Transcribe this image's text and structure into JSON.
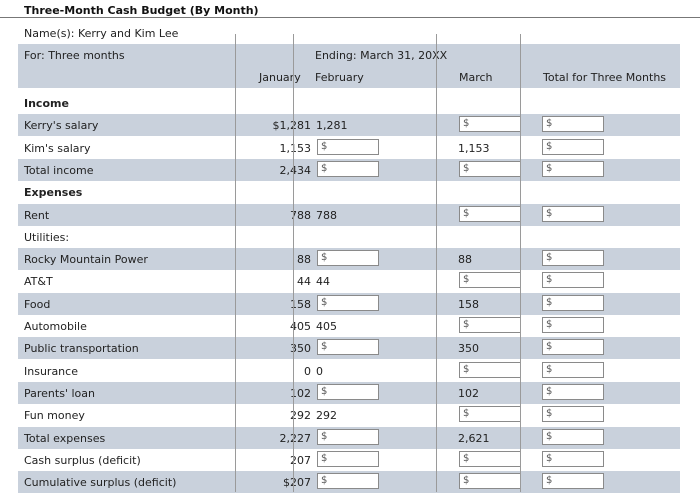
{
  "title": "Three-Month Cash Budget (By Month)",
  "names_label": "Name(s): Kerry and Kim Lee",
  "for_label": "For: Three months",
  "ending_label": "Ending: March 31, 20XX",
  "columns": {
    "jan": "January",
    "feb": "February",
    "mar": "March",
    "total": "Total for Three Months"
  },
  "currency_symbol": "$",
  "rows": [
    {
      "label": "Income",
      "bold": true,
      "shade": false,
      "jan": "",
      "feb": "",
      "mar": "",
      "feb_input": false,
      "mar_input": false,
      "tot_input": false
    },
    {
      "label": "Kerry's salary",
      "bold": false,
      "shade": true,
      "jan": "$1,281",
      "feb": "1,281",
      "mar": "",
      "feb_input": false,
      "mar_input": true,
      "tot_input": true
    },
    {
      "label": "Kim's salary",
      "bold": false,
      "shade": false,
      "jan": "1,153",
      "feb": "",
      "mar": "1,153",
      "feb_input": true,
      "mar_input": false,
      "tot_input": true
    },
    {
      "label": "Total income",
      "bold": false,
      "shade": true,
      "jan": "2,434",
      "feb": "",
      "mar": "",
      "feb_input": true,
      "mar_input": true,
      "tot_input": true
    },
    {
      "label": "Expenses",
      "bold": true,
      "shade": false,
      "jan": "",
      "feb": "",
      "mar": "",
      "feb_input": false,
      "mar_input": false,
      "tot_input": false
    },
    {
      "label": "Rent",
      "bold": false,
      "shade": true,
      "jan": "788",
      "feb": "788",
      "mar": "",
      "feb_input": false,
      "mar_input": true,
      "tot_input": true
    },
    {
      "label": "Utilities:",
      "bold": false,
      "shade": false,
      "jan": "",
      "feb": "",
      "mar": "",
      "feb_input": false,
      "mar_input": false,
      "tot_input": false
    },
    {
      "label": "Rocky Mountain Power",
      "bold": false,
      "shade": true,
      "jan": "88",
      "feb": "",
      "mar": "88",
      "feb_input": true,
      "mar_input": false,
      "tot_input": true
    },
    {
      "label": "AT&T",
      "bold": false,
      "shade": false,
      "jan": "44",
      "feb": "44",
      "mar": "",
      "feb_input": false,
      "mar_input": true,
      "tot_input": true
    },
    {
      "label": "Food",
      "bold": false,
      "shade": true,
      "jan": "158",
      "feb": "",
      "mar": "158",
      "feb_input": true,
      "mar_input": false,
      "tot_input": true
    },
    {
      "label": "Automobile",
      "bold": false,
      "shade": false,
      "jan": "405",
      "feb": "405",
      "mar": "",
      "feb_input": false,
      "mar_input": true,
      "tot_input": true
    },
    {
      "label": "Public transportation",
      "bold": false,
      "shade": true,
      "jan": "350",
      "feb": "",
      "mar": "350",
      "feb_input": true,
      "mar_input": false,
      "tot_input": true
    },
    {
      "label": "Insurance",
      "bold": false,
      "shade": false,
      "jan": "0",
      "feb": "0",
      "mar": "",
      "feb_input": false,
      "mar_input": true,
      "tot_input": true
    },
    {
      "label": "Parents' loan",
      "bold": false,
      "shade": true,
      "jan": "102",
      "feb": "",
      "mar": "102",
      "feb_input": true,
      "mar_input": false,
      "tot_input": true
    },
    {
      "label": "Fun money",
      "bold": false,
      "shade": false,
      "jan": "292",
      "feb": "292",
      "mar": "",
      "feb_input": false,
      "mar_input": true,
      "tot_input": true
    },
    {
      "label": "Total expenses",
      "bold": false,
      "shade": true,
      "jan": "2,227",
      "feb": "",
      "mar": "2,621",
      "feb_input": true,
      "mar_input": false,
      "tot_input": true
    },
    {
      "label": "Cash surplus (deficit)",
      "bold": false,
      "shade": false,
      "jan": "207",
      "feb": "",
      "mar": "",
      "feb_input": true,
      "mar_input": true,
      "tot_input": true
    },
    {
      "label": "Cumulative surplus (deficit)",
      "bold": false,
      "shade": true,
      "jan": "$207",
      "feb": "",
      "mar": "",
      "feb_input": true,
      "mar_input": true,
      "tot_input": true
    }
  ]
}
